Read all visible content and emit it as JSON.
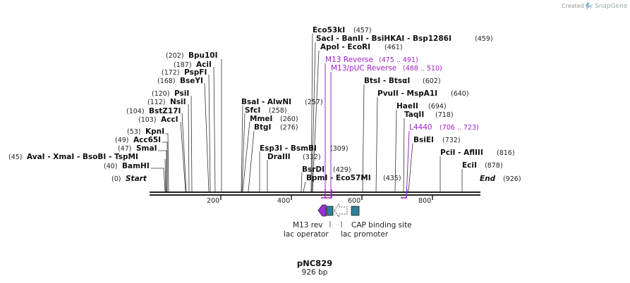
{
  "header": {
    "credit": "Created by",
    "brand": "SnapGene"
  },
  "plasmid": {
    "name": "pNC829",
    "size_label": "926 bp",
    "length": 926
  },
  "ends": [
    {
      "name": "Start",
      "pos_label": "(0)"
    },
    {
      "name": "End",
      "pos_label": "(926)"
    }
  ],
  "ruler_ticks": [
    "200",
    "400",
    "600",
    "800"
  ],
  "sites": [
    {
      "label": "BamHI",
      "pos_label": "(40)"
    },
    {
      "label": "AvaI   - XmaI   - BsoBI   - TspMI",
      "pos_label": "(45)"
    },
    {
      "label": "SmaI",
      "pos_label": "(47)"
    },
    {
      "label": "Acc65I",
      "pos_label": "(49)"
    },
    {
      "label": "KpnI",
      "pos_label": "(53)"
    },
    {
      "label": "AccI",
      "pos_label": "(103)"
    },
    {
      "label": "BstZ17I",
      "pos_label": "(104)"
    },
    {
      "label": "NsiI",
      "pos_label": "(112)"
    },
    {
      "label": "PsiI",
      "pos_label": "(120)"
    },
    {
      "label": "BseYI",
      "pos_label": "(168)"
    },
    {
      "label": "PspFI",
      "pos_label": "(172)"
    },
    {
      "label": "AciI",
      "pos_label": "(187)"
    },
    {
      "label": "Bpu10I",
      "pos_label": "(202)"
    },
    {
      "label": "BsaI   - AlwNI",
      "pos_label": "(257)"
    },
    {
      "label": "SfcI",
      "pos_label": "(258)"
    },
    {
      "label": "MmeI",
      "pos_label": "(260)"
    },
    {
      "label": "BtgI",
      "pos_label": "(276)"
    },
    {
      "label": "Esp3I   - BsmBI",
      "pos_label": "(309)"
    },
    {
      "label": "DraIII",
      "pos_label": "(332)"
    },
    {
      "label": "BsrDI",
      "pos_label": "(429)"
    },
    {
      "label": "BpmI   - Eco57MI",
      "pos_label": "(435)"
    },
    {
      "label": "Eco53kI",
      "pos_label": "(457)"
    },
    {
      "label": "SacI   - BanII   - BsiHKAI   - Bsp1286I",
      "pos_label": "(459)"
    },
    {
      "label": "ApoI   - EcoRI",
      "pos_label": "(461)"
    },
    {
      "label": "BtsI   - BtsαI",
      "pos_label": "(602)"
    },
    {
      "label": "PvuII   - MspA1I",
      "pos_label": "(640)"
    },
    {
      "label": "HaeII",
      "pos_label": "(694)"
    },
    {
      "label": "TaqII",
      "pos_label": "(718)"
    },
    {
      "label": "BsiEI",
      "pos_label": "(732)"
    },
    {
      "label": "PciI   - AflIII",
      "pos_label": "(816)"
    },
    {
      "label": "EciI",
      "pos_label": "(878)"
    }
  ],
  "primers": [
    {
      "label": "M13 Reverse",
      "range_label": "(475 .. 491)"
    },
    {
      "label": "M13/pUC Reverse",
      "range_label": "(488 .. 510)"
    },
    {
      "label": "L4440",
      "range_label": "(706 .. 723)"
    }
  ],
  "features": [
    {
      "label": "M13 rev"
    },
    {
      "label": "lac operator"
    },
    {
      "label": "lac promoter"
    },
    {
      "label": "CAP binding site"
    }
  ],
  "colors": {
    "primer": "#a020c8",
    "feature_box": "#2e7f97",
    "backbone": "#222222"
  }
}
